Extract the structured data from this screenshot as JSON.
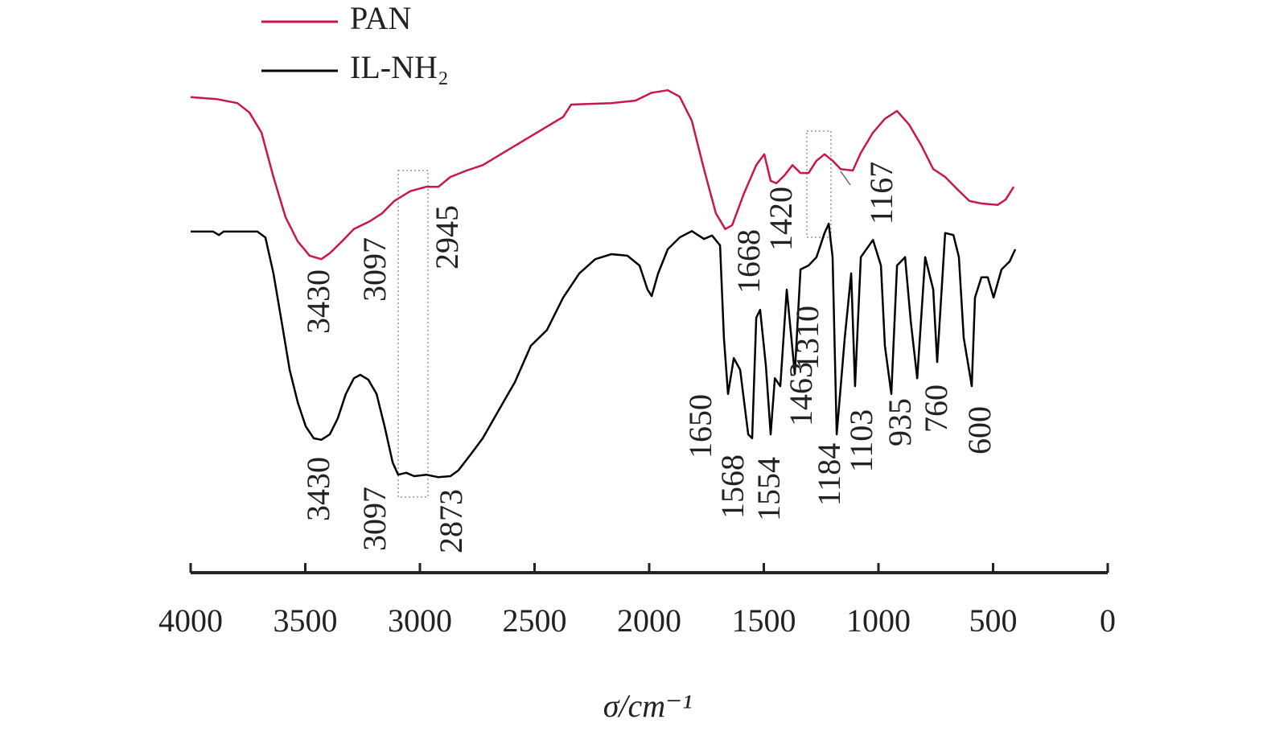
{
  "chart_data": {
    "type": "line",
    "xlabel": "σ/cm⁻¹",
    "xlim": [
      4000,
      0
    ],
    "xticks": [
      4000,
      3500,
      3000,
      2500,
      2000,
      1500,
      1000,
      500,
      0
    ],
    "ylim": [
      0,
      100
    ],
    "legend": "upper left",
    "series": [
      {
        "name": "PAN",
        "color": "#c8174a",
        "x": [
          4000,
          3884,
          3796,
          3744,
          3691,
          3639,
          3586,
          3533,
          3481,
          3430,
          3393,
          3340,
          3288,
          3218,
          3165,
          3112,
          3042,
          2972,
          2919,
          2867,
          2796,
          2726,
          2551,
          2375,
          2340,
          2165,
          2060,
          1989,
          1919,
          1867,
          1814,
          1761,
          1709,
          1668,
          1638,
          1586,
          1533,
          1498,
          1470,
          1445,
          1410,
          1375,
          1340,
          1305,
          1270,
          1235,
          1200,
          1165,
          1112,
          1077,
          1024,
          972,
          919,
          866,
          814,
          761,
          709,
          656,
          603,
          551,
          480,
          445,
          410
        ],
        "values": [
          96.6,
          96.2,
          95.4,
          93.5,
          89.4,
          80.4,
          72.2,
          67.3,
          64.4,
          63.7,
          64.9,
          67.3,
          69.8,
          71.4,
          73.0,
          75.5,
          77.5,
          78.4,
          78.4,
          80.4,
          81.7,
          82.8,
          87.7,
          92.6,
          95.1,
          95.4,
          95.9,
          97.5,
          98.0,
          96.7,
          91.8,
          82.0,
          73.0,
          69.8,
          70.6,
          77.1,
          82.8,
          85.0,
          79.6,
          79.1,
          80.7,
          82.8,
          81.2,
          81.2,
          83.7,
          85.0,
          83.7,
          82.0,
          81.7,
          85.3,
          89.4,
          92.2,
          93.8,
          91.0,
          86.9,
          82.0,
          80.4,
          77.9,
          75.5,
          75.0,
          74.7,
          75.8,
          78.4
        ]
      },
      {
        "name": "IL-NH₂",
        "color": "#000000",
        "x": [
          4000,
          3902,
          3877,
          3856,
          3709,
          3674,
          3639,
          3603,
          3568,
          3533,
          3498,
          3463,
          3430,
          3393,
          3358,
          3323,
          3288,
          3260,
          3225,
          3189,
          3154,
          3119,
          3095,
          3060,
          3025,
          2972,
          2919,
          2867,
          2832,
          2779,
          2726,
          2656,
          2586,
          2516,
          2446,
          2375,
          2305,
          2235,
          2165,
          2095,
          2042,
          2007,
          1989,
          1961,
          1919,
          1867,
          1814,
          1761,
          1726,
          1691,
          1674,
          1656,
          1631,
          1603,
          1568,
          1551,
          1533,
          1516,
          1491,
          1470,
          1452,
          1428,
          1400,
          1365,
          1340,
          1305,
          1270,
          1235,
          1217,
          1200,
          1182,
          1147,
          1119,
          1102,
          1077,
          1024,
          989,
          972,
          944,
          919,
          884,
          859,
          831,
          796,
          761,
          744,
          709,
          673,
          649,
          628,
          593,
          579,
          551,
          523,
          498,
          463,
          428,
          403
        ],
        "values": [
          69.3,
          69.3,
          68.6,
          69.3,
          69.3,
          68.1,
          60.8,
          51.0,
          41.2,
          34.6,
          29.7,
          27.3,
          27.0,
          28.1,
          31.4,
          36.3,
          39.5,
          40.2,
          39.2,
          36.3,
          29.7,
          22.4,
          19.9,
          20.3,
          19.6,
          19.9,
          19.4,
          19.6,
          20.8,
          24.0,
          27.3,
          33.0,
          38.7,
          46.1,
          49.3,
          55.9,
          60.8,
          63.7,
          64.7,
          64.4,
          62.4,
          57.5,
          56.2,
          60.8,
          65.7,
          68.1,
          69.4,
          67.8,
          68.5,
          66.5,
          47.7,
          36.3,
          43.6,
          41.2,
          28.1,
          27.3,
          51.8,
          53.4,
          42.0,
          28.1,
          39.5,
          37.9,
          57.5,
          40.4,
          61.6,
          62.4,
          64.1,
          69.0,
          70.9,
          64.1,
          28.1,
          47.7,
          60.8,
          37.9,
          64.1,
          67.6,
          62.4,
          46.1,
          36.3,
          62.4,
          64.1,
          51.0,
          39.5,
          64.1,
          57.5,
          42.8,
          69.0,
          68.6,
          64.1,
          47.7,
          37.9,
          55.9,
          60.0,
          60.0,
          55.9,
          61.6,
          63.2,
          65.7
        ]
      }
    ],
    "annotations": [
      "3430",
      "3097",
      "2945",
      "1668",
      "1420",
      "1310",
      "1167",
      "3430",
      "3097",
      "2873",
      "1650",
      "1568",
      "1554",
      "1463",
      "1184",
      "1103",
      "935",
      "760",
      "600"
    ]
  }
}
